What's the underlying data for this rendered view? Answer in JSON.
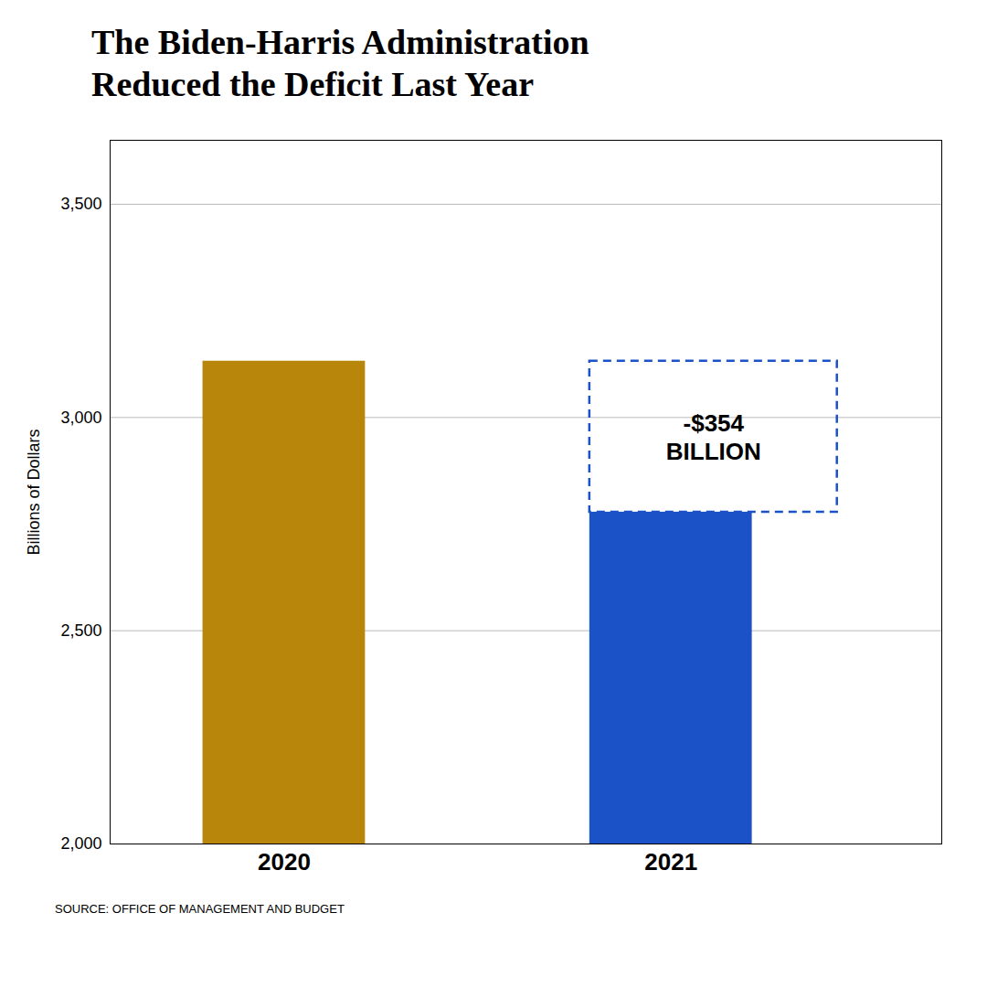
{
  "chart_data": {
    "type": "bar",
    "title": "The Biden-Harris Administration\nReduced the Deficit Last Year",
    "categories": [
      "2020",
      "2021"
    ],
    "values": [
      3132,
      2778
    ],
    "colors": [
      "#B8860B",
      "#1C52C8"
    ],
    "ylabel": "Billions of Dollars",
    "ylim": [
      2000,
      3650
    ],
    "yticks": [
      {
        "value": 2000,
        "label": "2,000"
      },
      {
        "value": 2500,
        "label": "2,500"
      },
      {
        "value": 3000,
        "label": "3,000"
      },
      {
        "value": 3500,
        "label": "3,500"
      }
    ],
    "grid": true,
    "annotations": [
      "-$354",
      "BILLION"
    ],
    "caption": "SOURCE: OFFICE OF MANAGEMENT AND BUDGET"
  }
}
